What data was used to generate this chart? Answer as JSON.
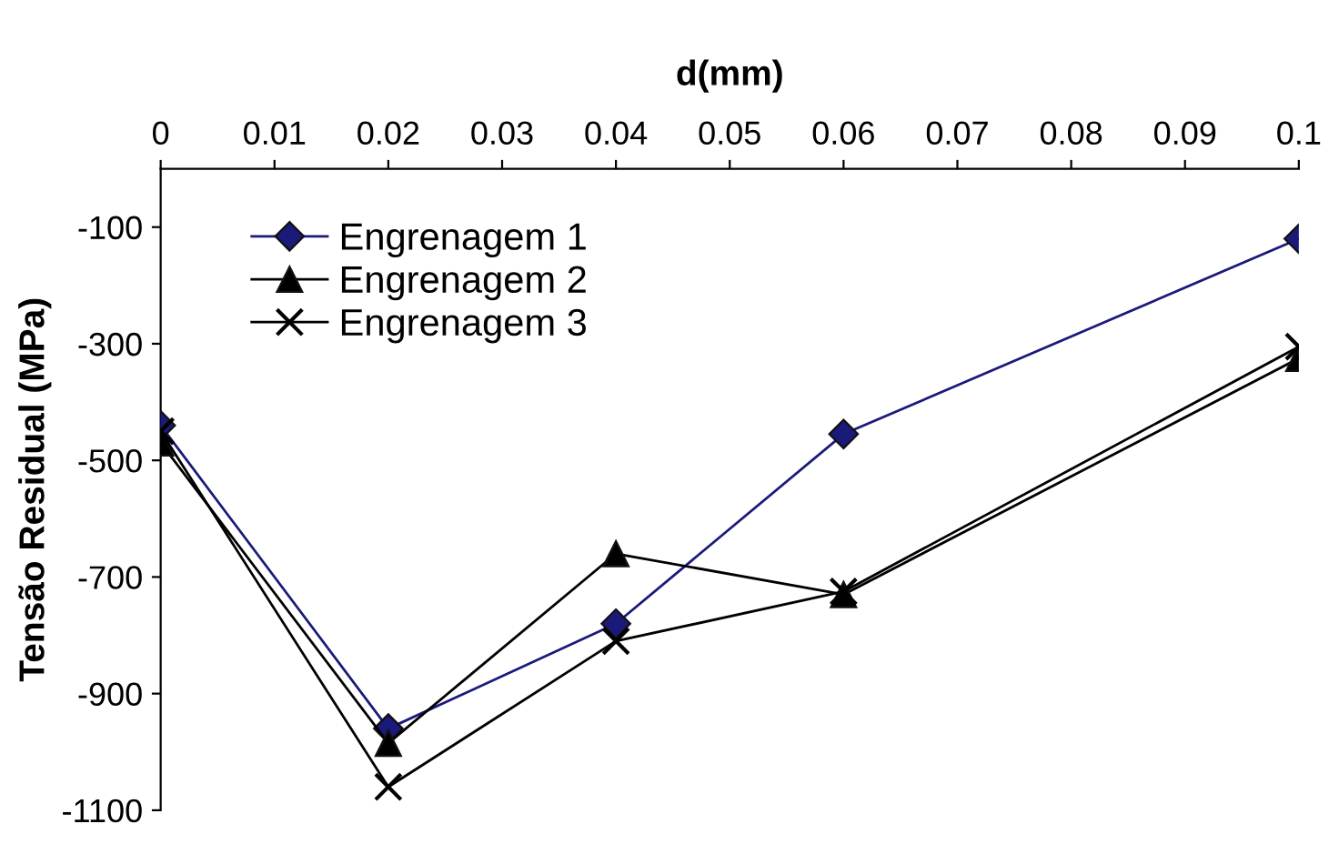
{
  "chart_data": {
    "type": "line",
    "xlabel": "d(mm)",
    "ylabel": "Tensão Residual (MPa)",
    "x": [
      0,
      0.02,
      0.04,
      0.06,
      0.1
    ],
    "xlim": [
      0,
      0.1
    ],
    "xticks": [
      0,
      0.01,
      0.02,
      0.03,
      0.04,
      0.05,
      0.06,
      0.07,
      0.08,
      0.09,
      0.1
    ],
    "ylim": [
      -1100,
      0
    ],
    "yticks": [
      -100,
      -300,
      -500,
      -700,
      -900,
      -1100
    ],
    "grid": false,
    "legend": "top left",
    "series": [
      {
        "name": "Engrenagem 1",
        "color": "#1a1a7a",
        "marker": "diamond",
        "values": [
          -440,
          -960,
          -780,
          -455,
          -120
        ]
      },
      {
        "name": "Engrenagem 2",
        "color": "#000000",
        "marker": "triangle",
        "values": [
          -470,
          -985,
          -660,
          -730,
          -325
        ]
      },
      {
        "name": "Engrenagem 3",
        "color": "#000000",
        "marker": "cross",
        "values": [
          -450,
          -1060,
          -810,
          -725,
          -305
        ]
      }
    ]
  }
}
